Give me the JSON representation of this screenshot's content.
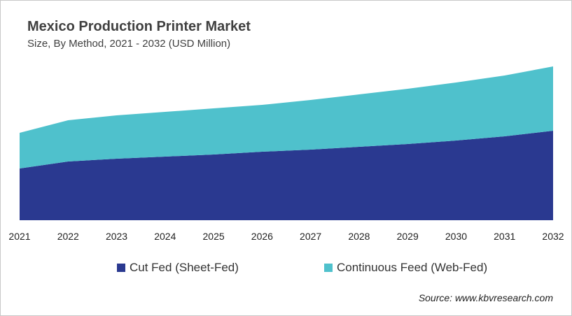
{
  "chart_data": {
    "type": "area",
    "stacked": true,
    "title": "Mexico Production Printer Market",
    "subtitle": "Size, By Method, 2021 - 2032 (USD Million)",
    "categories": [
      "2021",
      "2022",
      "2023",
      "2024",
      "2025",
      "2026",
      "2027",
      "2028",
      "2029",
      "2030",
      "2031",
      "2032"
    ],
    "series": [
      {
        "name": "Cut Fed (Sheet-Fed)",
        "color": "#2a3990",
        "values": [
          74,
          84,
          88,
          91,
          94,
          98,
          101,
          105,
          109,
          114,
          120,
          128
        ]
      },
      {
        "name": "Continuous Feed (Web-Fed)",
        "color": "#4fc1cc",
        "values": [
          51,
          59,
          62,
          64,
          66,
          67,
          71,
          75,
          79,
          83,
          87,
          92
        ]
      }
    ],
    "ylim": [
      0,
      230
    ],
    "grid": false,
    "y_axis_shown": false,
    "legend_position": "bottom"
  },
  "source": "Source: www.kbvresearch.com"
}
